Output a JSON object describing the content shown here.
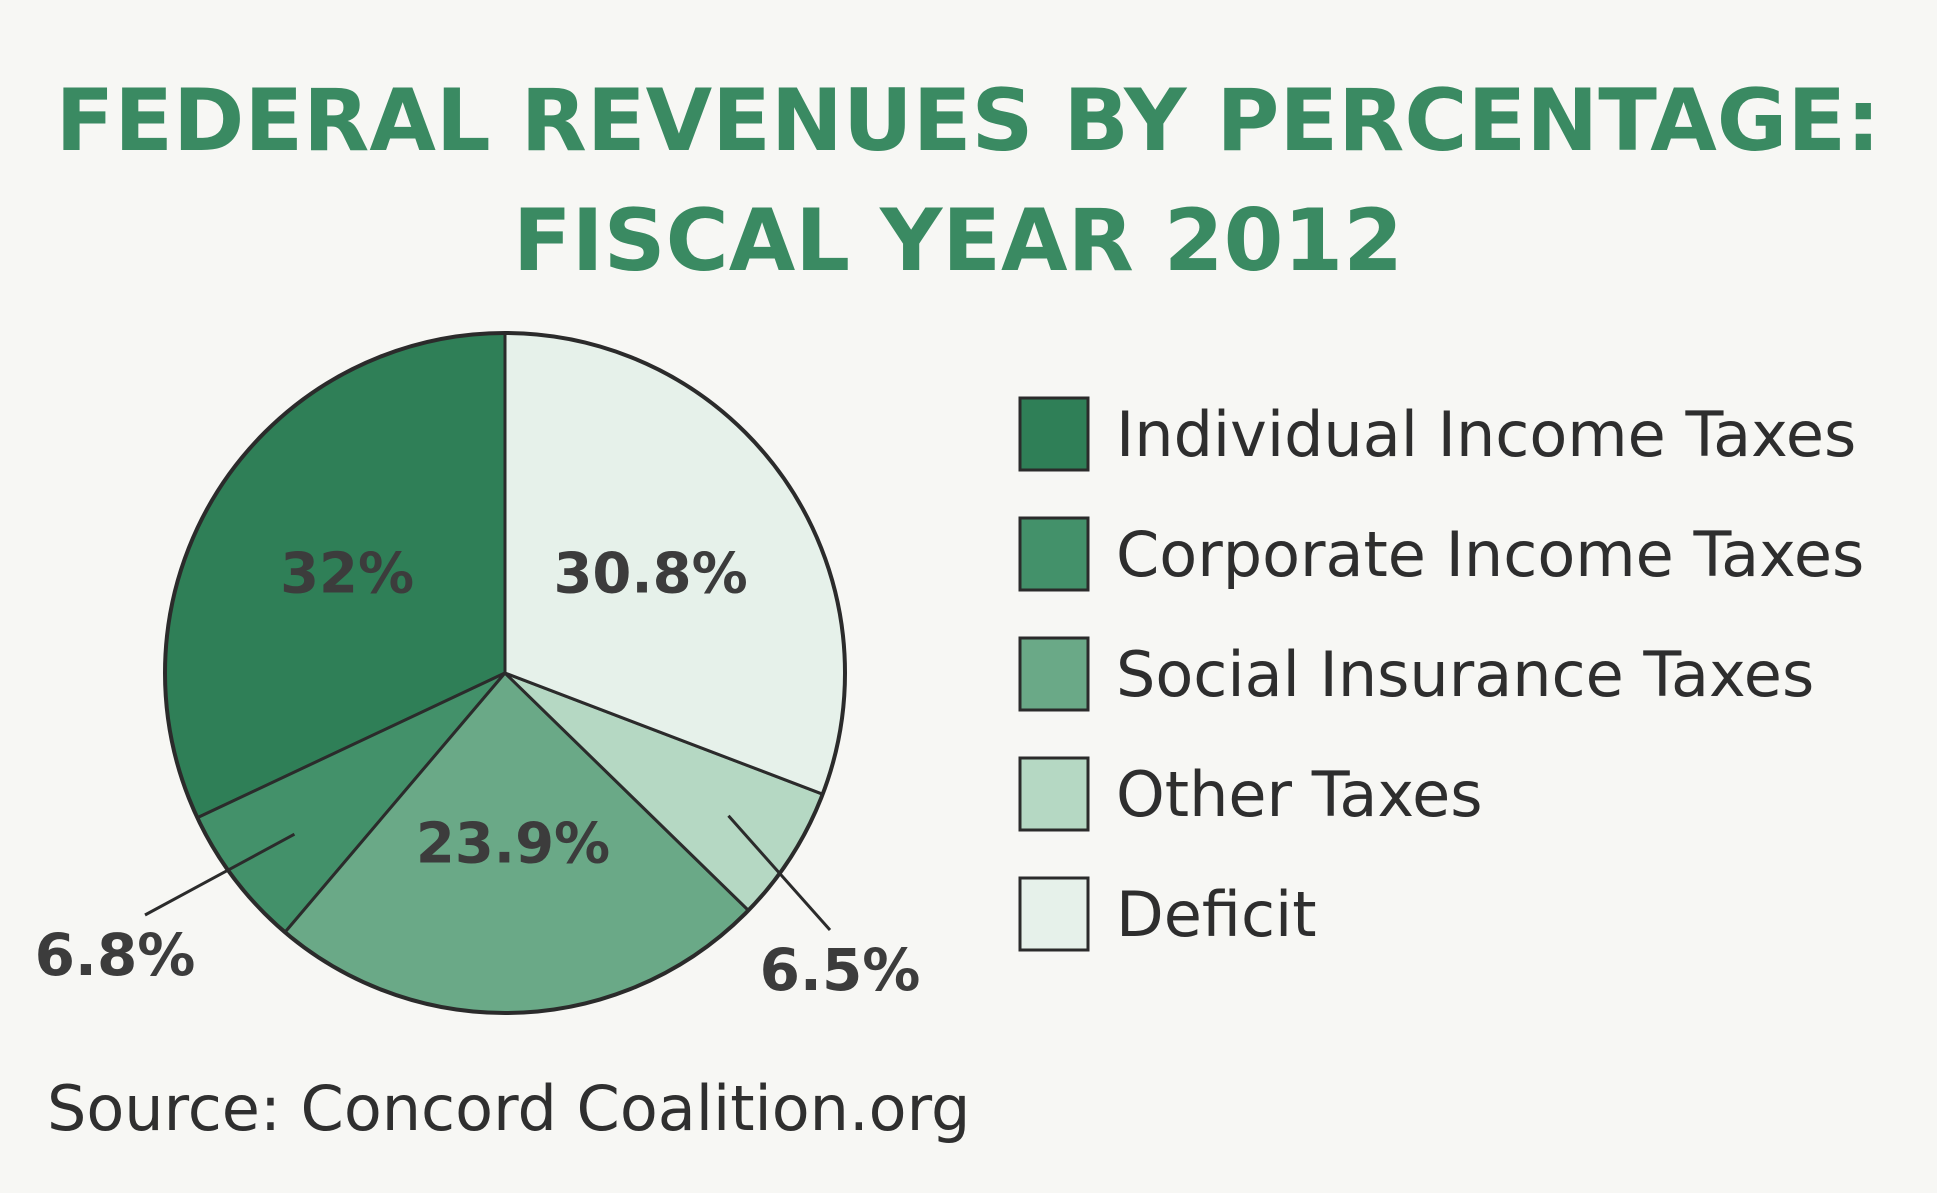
{
  "chart_data": {
    "type": "pie",
    "title_lines": [
      "FEDERAL REVENUES BY PERCENTAGE:",
      "FISCAL YEAR 2012"
    ],
    "slices": [
      {
        "name": "Individual Income Taxes",
        "value": 32.0,
        "label": "32%",
        "color": "#2f7f57"
      },
      {
        "name": "Corporate Income Taxes",
        "value": 6.8,
        "label": "6.8%",
        "color": "#43916a"
      },
      {
        "name": "Social Insurance Taxes",
        "value": 23.9,
        "label": "23.9%",
        "color": "#6aa987"
      },
      {
        "name": "Other Taxes",
        "value": 6.5,
        "label": "6.5%",
        "color": "#b5d8c3"
      },
      {
        "name": "Deficit",
        "value": 30.8,
        "label": "30.8%",
        "color": "#e6f1ea"
      }
    ],
    "legend_position": "right",
    "source": "Source: Concord Coalition.org"
  }
}
